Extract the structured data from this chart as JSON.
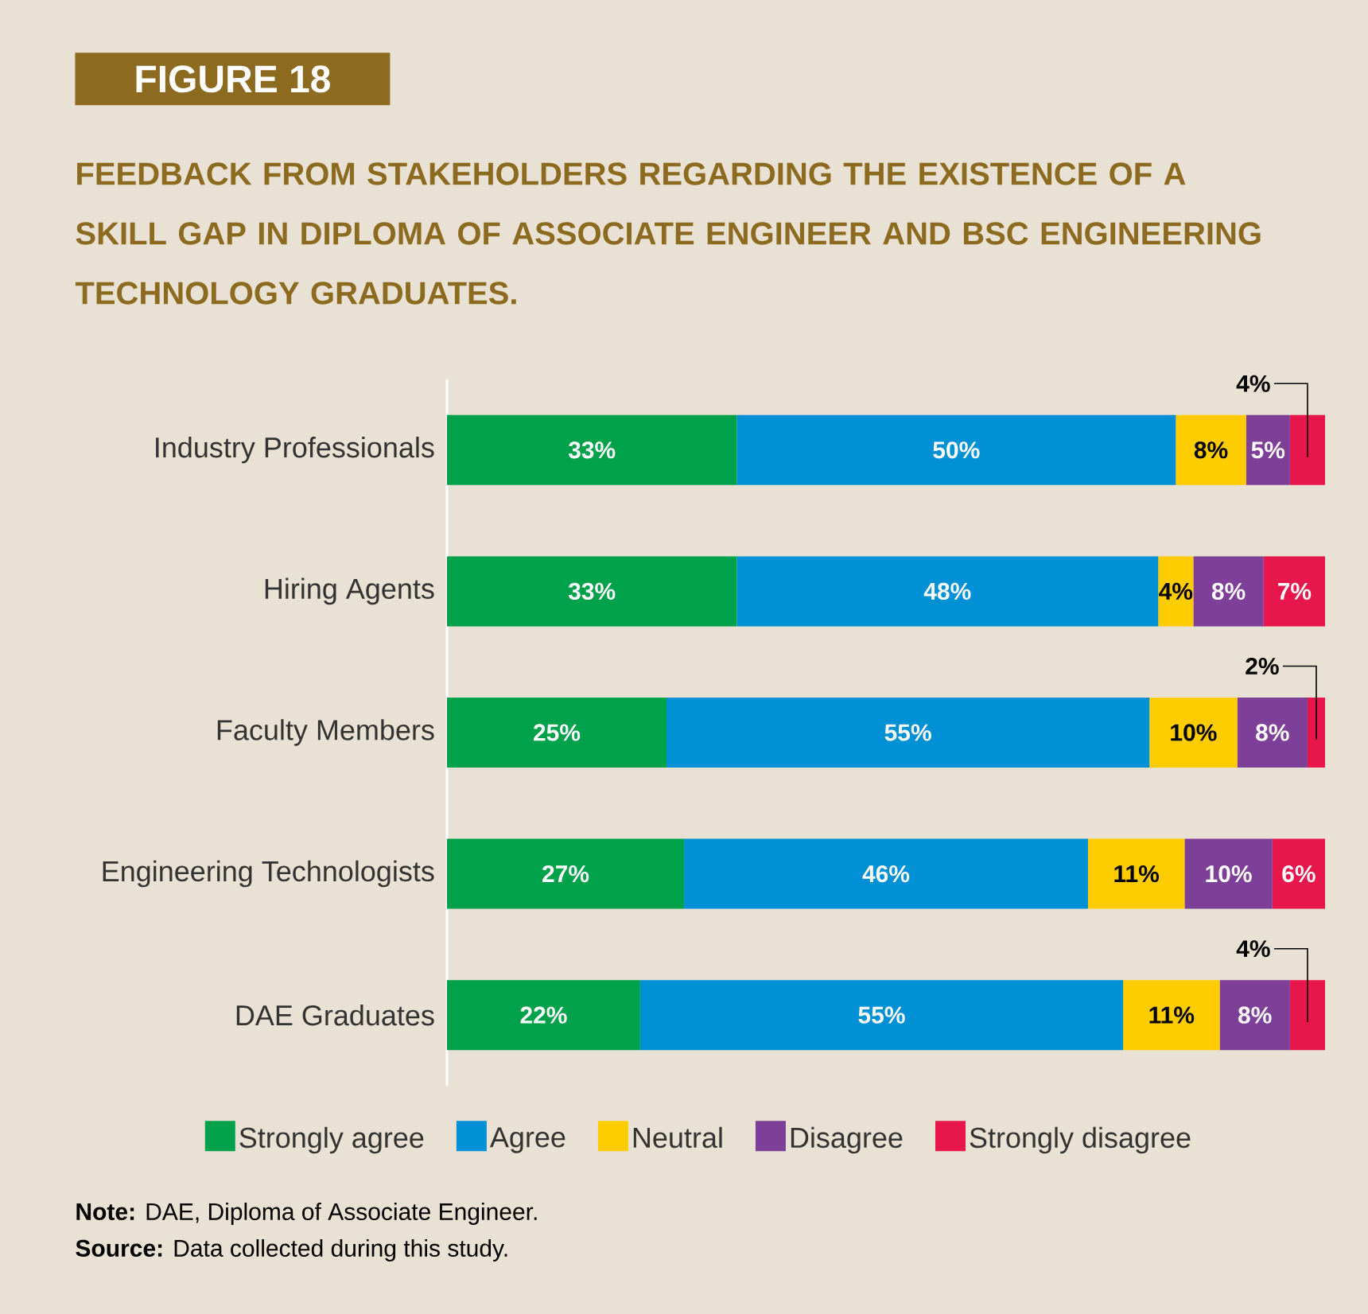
{
  "chart_data": {
    "type": "bar",
    "orientation": "horizontal",
    "stacked": true,
    "title": "FIGURE 18",
    "subtitle": "FEEDBACK FROM STAKEHOLDERS REGARDING THE EXISTENCE OF A SKILL GAP IN DIPLOMA OF ASSOCIATE ENGINEER AND BSC ENGINEERING TECHNOLOGY GRADUATES.",
    "categories": [
      "Industry Professionals",
      "Hiring Agents",
      "Faculty Members",
      "Engineering Technologists",
      "DAE Graduates"
    ],
    "series": [
      {
        "name": "Strongly agree",
        "color": "#00a14b",
        "values": [
          33,
          33,
          25,
          27,
          22
        ],
        "value_labels": [
          "33%",
          "33%",
          "25%",
          "27%",
          "22%"
        ]
      },
      {
        "name": "Agree",
        "color": "#0090d5",
        "values": [
          50,
          48,
          55,
          46,
          55
        ],
        "value_labels": [
          "50%",
          "48%",
          "55%",
          "46%",
          "55%"
        ]
      },
      {
        "name": "Neutral",
        "color": "#ffcc00",
        "values": [
          8,
          4,
          10,
          11,
          11
        ],
        "value_labels": [
          "8%",
          "4%",
          "10%",
          "11%",
          "11%"
        ]
      },
      {
        "name": "Disagree",
        "color": "#7e3f98",
        "values": [
          5,
          8,
          8,
          10,
          8
        ],
        "value_labels": [
          "5%",
          "8%",
          "8%",
          "10%",
          "8%"
        ]
      },
      {
        "name": "Strongly disagree",
        "color": "#e8174b",
        "values": [
          4,
          7,
          2,
          6,
          4
        ],
        "value_labels": [
          "4%",
          "7%",
          "2%",
          "6%",
          "4%"
        ]
      }
    ],
    "legend": "bottom",
    "tick_labels": "y",
    "annotations": [
      "**Note:** DAE, Diploma of Associate Engineer.",
      "**Source:** Data collected during this study."
    ]
  }
}
